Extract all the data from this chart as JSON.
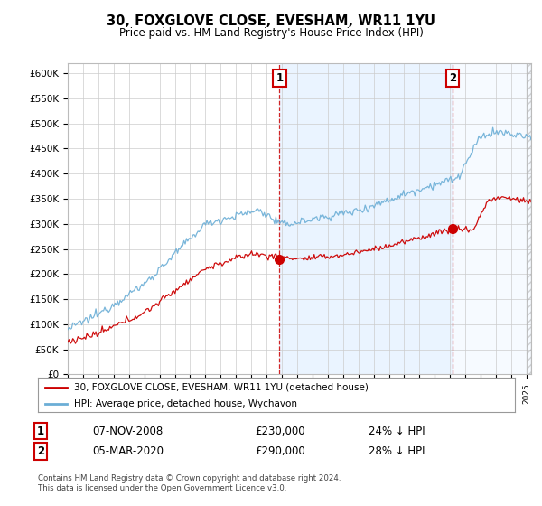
{
  "title": "30, FOXGLOVE CLOSE, EVESHAM, WR11 1YU",
  "subtitle": "Price paid vs. HM Land Registry's House Price Index (HPI)",
  "legend_line1": "30, FOXGLOVE CLOSE, EVESHAM, WR11 1YU (detached house)",
  "legend_line2": "HPI: Average price, detached house, Wychavon",
  "annotation1_label": "1",
  "annotation1_date": "07-NOV-2008",
  "annotation1_price": "£230,000",
  "annotation1_pct": "24% ↓ HPI",
  "annotation2_label": "2",
  "annotation2_date": "05-MAR-2020",
  "annotation2_price": "£290,000",
  "annotation2_pct": "28% ↓ HPI",
  "footer": "Contains HM Land Registry data © Crown copyright and database right 2024.\nThis data is licensed under the Open Government Licence v3.0.",
  "hpi_color": "#6baed6",
  "price_color": "#cc0000",
  "shade_color": "#ddeeff",
  "annotation_box_color": "#cc0000",
  "vline_color": "#cc0000",
  "background_color": "#ffffff",
  "grid_color": "#cccccc",
  "hatch_color": "#aaaaaa",
  "ylim": [
    0,
    620000
  ],
  "yticks": [
    0,
    50000,
    100000,
    150000,
    200000,
    250000,
    300000,
    350000,
    400000,
    450000,
    500000,
    550000,
    600000
  ],
  "sale1_x": 2008.85,
  "sale1_price": 230000,
  "sale2_x": 2020.17,
  "sale2_price": 290000,
  "xstart": 1995.0,
  "xend": 2025.3
}
